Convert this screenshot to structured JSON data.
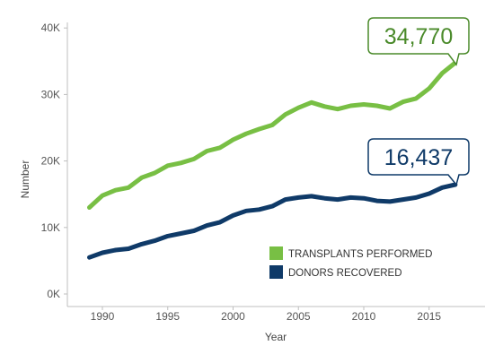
{
  "chart_data": {
    "type": "line",
    "xlabel": "Year",
    "ylabel": "Number",
    "xlim": [
      1987,
      2018.5
    ],
    "ylim": [
      0,
      40000
    ],
    "y_ticks": [
      0,
      10000,
      20000,
      30000,
      40000
    ],
    "y_tick_labels": [
      "0K",
      "10K",
      "20K",
      "30K",
      "40K"
    ],
    "x_ticks": [
      1990,
      1995,
      2000,
      2005,
      2010,
      2015
    ],
    "x_tick_labels": [
      "1990",
      "1995",
      "2000",
      "2005",
      "2010",
      "2015"
    ],
    "grid": false,
    "legend": "lower-right, inside plot",
    "x": [
      1989,
      1990,
      1991,
      1992,
      1993,
      1994,
      1995,
      1996,
      1997,
      1998,
      1999,
      2000,
      2001,
      2002,
      2003,
      2004,
      2005,
      2006,
      2007,
      2008,
      2009,
      2010,
      2011,
      2012,
      2013,
      2014,
      2015,
      2016,
      2017
    ],
    "series": [
      {
        "name": "TRANSPLANTS PERFORMED",
        "color": "#78bf44",
        "values": [
          13000,
          14800,
          15600,
          16000,
          17500,
          18200,
          19300,
          19700,
          20300,
          21500,
          22000,
          23200,
          24100,
          24800,
          25400,
          27000,
          28000,
          28800,
          28200,
          27800,
          28300,
          28500,
          28300,
          27900,
          28900,
          29400,
          30900,
          33200,
          34770
        ]
      },
      {
        "name": "DONORS RECOVERED",
        "color": "#0f3a68",
        "values": [
          5500,
          6200,
          6600,
          6800,
          7500,
          8000,
          8700,
          9100,
          9500,
          10300,
          10800,
          11800,
          12500,
          12700,
          13200,
          14200,
          14500,
          14700,
          14400,
          14200,
          14500,
          14400,
          14000,
          13900,
          14200,
          14500,
          15100,
          16000,
          16437
        ]
      }
    ],
    "callouts": [
      {
        "series": "TRANSPLANTS PERFORMED",
        "text": "34,770",
        "color": "#4a8a2a"
      },
      {
        "series": "DONORS RECOVERED",
        "text": "16,437",
        "color": "#0f3a68"
      }
    ]
  }
}
